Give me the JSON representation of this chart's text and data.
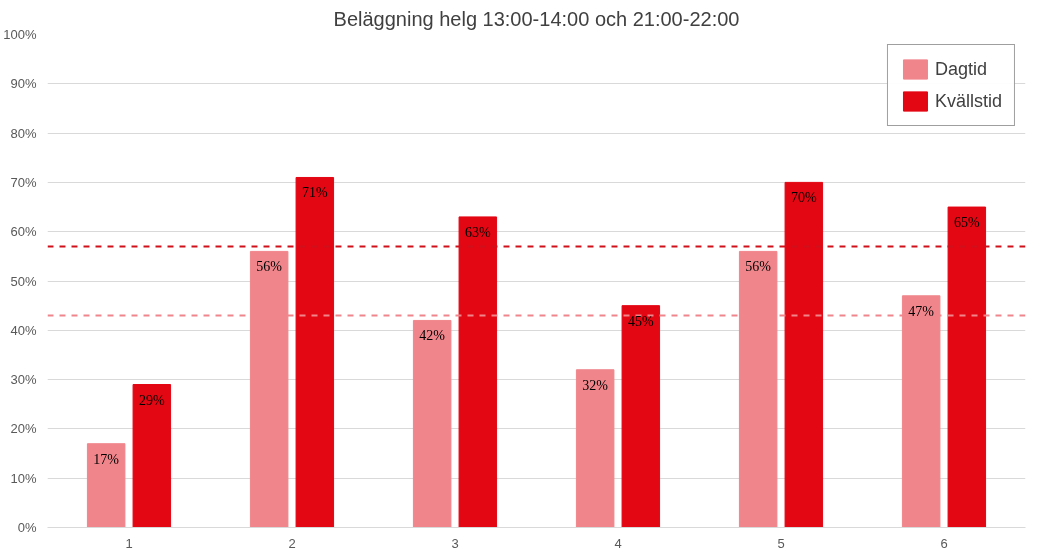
{
  "chart_data": {
    "type": "bar",
    "title": "Beläggning helg 13:00-14:00 och 21:00-22:00",
    "categories": [
      "1",
      "2",
      "3",
      "4",
      "5",
      "6"
    ],
    "series": [
      {
        "name": "Dagtid",
        "color": "#f0868c",
        "values": [
          17,
          56,
          42,
          32,
          56,
          47
        ],
        "value_labels": [
          "17%",
          "56%",
          "42%",
          "32%",
          "56%",
          "47%"
        ]
      },
      {
        "name": "Kvällstid",
        "color": "#e30613",
        "values": [
          29,
          71,
          63,
          45,
          70,
          65
        ],
        "value_labels": [
          "29%",
          "71%",
          "63%",
          "45%",
          "70%",
          "65%"
        ]
      }
    ],
    "ylim": [
      0,
      100
    ],
    "yticks": [
      {
        "value": 0,
        "label": "0%"
      },
      {
        "value": 10,
        "label": "10%"
      },
      {
        "value": 20,
        "label": "20%"
      },
      {
        "value": 30,
        "label": "30%"
      },
      {
        "value": 40,
        "label": "40%"
      },
      {
        "value": 50,
        "label": "50%"
      },
      {
        "value": 60,
        "label": "60%"
      },
      {
        "value": 70,
        "label": "70%"
      },
      {
        "value": 80,
        "label": "80%"
      },
      {
        "value": 90,
        "label": "90%"
      },
      {
        "value": 100,
        "label": "100%"
      }
    ],
    "ref_lines": [
      {
        "axis": "y",
        "value": 57,
        "color": "#d0101a",
        "line_style": "dashed"
      },
      {
        "axis": "y",
        "value": 43,
        "color": "#f0868c",
        "line_style": "dashed"
      }
    ],
    "grid": "y",
    "legend": "top right"
  }
}
